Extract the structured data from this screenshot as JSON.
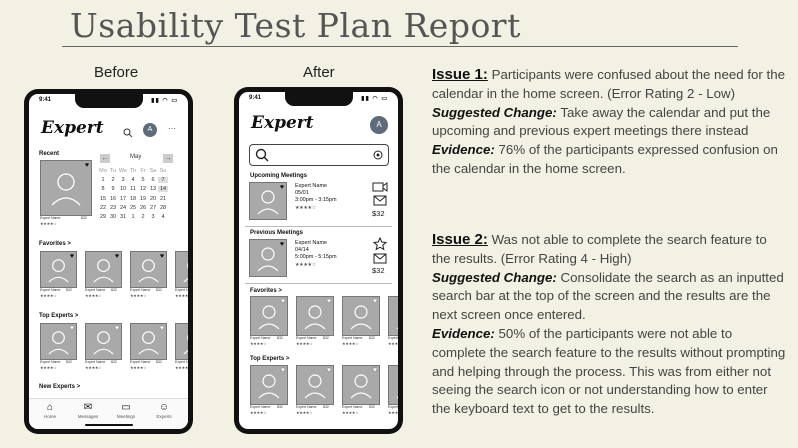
{
  "page": {
    "title": "Usability Test Plan Report"
  },
  "before": {
    "label": "Before",
    "status_time": "9:41",
    "logo": "Expert",
    "avatar_initial": "A",
    "menu": "···",
    "recent_label": "Recent",
    "month": "May",
    "weekday_headers": [
      "Mo",
      "Tu",
      "We",
      "Th",
      "Fr",
      "Sa",
      "Su"
    ],
    "calendar_rows": [
      [
        "",
        "",
        "",
        "",
        "",
        "",
        ""
      ],
      [
        "1",
        "2",
        "3",
        "4",
        "5",
        "6",
        "7"
      ],
      [
        "8",
        "9",
        "10",
        "11",
        "12",
        "13",
        "14"
      ],
      [
        "15",
        "16",
        "17",
        "18",
        "19",
        "20",
        "21"
      ],
      [
        "22",
        "23",
        "24",
        "25",
        "26",
        "27",
        "28"
      ],
      [
        "29",
        "30",
        "31",
        "1",
        "2",
        "3",
        "4"
      ]
    ],
    "recent_expert_name": "Expert Name",
    "recent_expert_price": "$32",
    "favorites_label": "Favorites  >",
    "top_experts_label": "Top Experts  >",
    "new_experts_label": "New Experts  >",
    "mini_name": "Expert Name",
    "mini_price": "$32",
    "stars": "★★★★☆",
    "tabs": [
      "Home",
      "Messages",
      "Meetings",
      "Experts"
    ]
  },
  "after": {
    "label": "After",
    "status_time": "9:41",
    "logo": "Expert",
    "avatar_initial": "A",
    "upcoming_label": "Upcoming Meetings",
    "upcoming": {
      "name": "Expert Name",
      "date": "05/01",
      "time": "3:00pm - 3:15pm",
      "price": "$32"
    },
    "previous_label": "Previous Meetings",
    "previous": {
      "name": "Expert Name",
      "date": "04/14",
      "time": "5:00pm - 5:15pm",
      "price": "$32"
    },
    "favorites_label": "Favorites  >",
    "top_experts_label": "Top Experts  >",
    "mini_name": "Expert Name",
    "mini_price": "$32",
    "stars": "★★★★☆"
  },
  "report": {
    "issue1_head": "Issue 1:",
    "issue1_text": " Participants were confused  about the need for the calendar in the home screen. (Error Rating 2 - Low)",
    "issue1_change_label": "Suggested Change:",
    "issue1_change_text": " Take away the calendar and put the upcoming and previous expert meetings there instead",
    "issue1_evidence_label": "Evidence:",
    "issue1_evidence_text": " 76% of the participants expressed confusion on the calendar in the home screen.",
    "issue2_head": "Issue 2:",
    "issue2_text": " Was not able to complete the search feature to the results. (Error Rating 4 - High)",
    "issue2_change_label": "Suggested Change:",
    "issue2_change_text": " Consolidate the search as an inputted search bar at the top of the screen and the results are the next screen once entered.",
    "issue2_evidence_label": "Evidence:",
    "issue2_evidence_text": " 50% of the participants were not able to complete the search feature to the results without prompting and helping through the process. This was from either not seeing the search icon or not understanding how to enter the keyboard text to get to the results."
  }
}
